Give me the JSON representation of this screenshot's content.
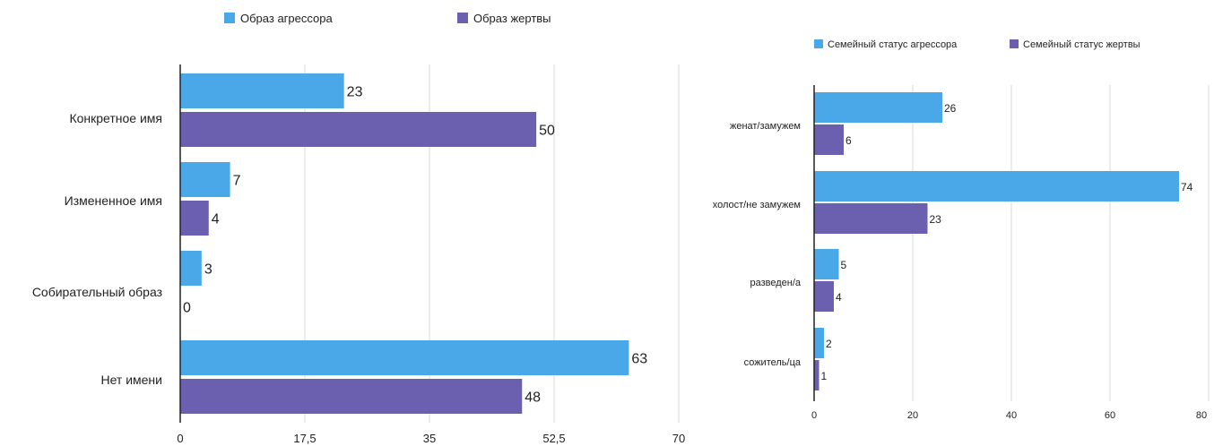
{
  "chart_data": [
    {
      "type": "bar",
      "orientation": "horizontal",
      "categories": [
        "Конкретное имя",
        "Измененное имя",
        "Собирательный образ",
        "Нет имени"
      ],
      "series": [
        {
          "name": "Образ агрессора",
          "color": "#4aa8e8",
          "values": [
            23,
            7,
            3,
            63
          ]
        },
        {
          "name": "Образ жертвы",
          "color": "#6b5fb0",
          "values": [
            50,
            4,
            0,
            48
          ]
        }
      ],
      "xlim": [
        0,
        70
      ],
      "xticks": [
        "0",
        "17,5",
        "35",
        "52,5",
        "70"
      ],
      "grid": true,
      "legend_position": "top"
    },
    {
      "type": "bar",
      "orientation": "horizontal",
      "categories": [
        "женат/замужем",
        "холост/не замужем",
        "разведен/а",
        "сожитель/ца"
      ],
      "series": [
        {
          "name": "Семейный статус агрессора",
          "color": "#4aa8e8",
          "values": [
            26,
            74,
            5,
            2
          ]
        },
        {
          "name": "Семейный статус жертвы",
          "color": "#6b5fb0",
          "values": [
            6,
            23,
            4,
            1
          ]
        }
      ],
      "xlim": [
        0,
        80
      ],
      "xticks": [
        "0",
        "20",
        "40",
        "60",
        "80"
      ],
      "grid": true,
      "legend_position": "top-right"
    }
  ]
}
